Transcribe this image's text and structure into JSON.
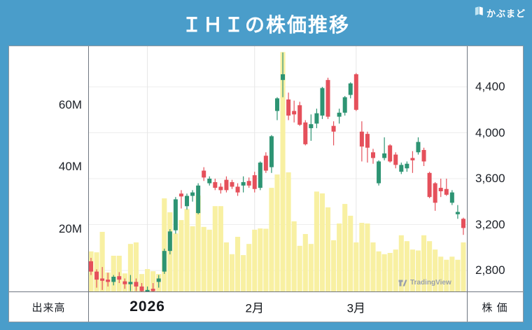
{
  "header": {
    "title": "ＩＨＩの株価推移",
    "logo_text": "かぶまど"
  },
  "colors": {
    "page_bg": "#4A9DCA",
    "panel_bg": "#FFFFFF",
    "up": "#2D9473",
    "down": "#E5505B",
    "volume": "#F8F0A2",
    "grid": "#EDEDED",
    "month_grid": "#E6E6E6",
    "border": "#6F7680",
    "axis_text": "#1C2027",
    "watermark": "#9AA0A9"
  },
  "axes": {
    "volume_axis_label": "出来高",
    "price_axis_label": "株 価",
    "volume_ticks": [
      {
        "label": "60M",
        "value": 60
      },
      {
        "label": "40M",
        "value": 40
      },
      {
        "label": "20M",
        "value": 20
      }
    ],
    "price_ticks": [
      {
        "label": "4,400",
        "value": 4400
      },
      {
        "label": "4,000",
        "value": 4000
      },
      {
        "label": "3,600",
        "value": 3600
      },
      {
        "label": "3,200",
        "value": 3200
      },
      {
        "label": "2,800",
        "value": 2800
      }
    ],
    "x_ticks": [
      {
        "label": "2026",
        "index": 10,
        "bold": true
      },
      {
        "label": "2月",
        "index": 29,
        "bold": false
      },
      {
        "label": "3月",
        "index": 47,
        "bold": false
      }
    ]
  },
  "watermark_text": "TradingView",
  "chart_data": {
    "type": "candlestick+volume",
    "title": "ＩＨＩの株価推移",
    "price_axis": {
      "visible_range": [
        2610,
        4755
      ],
      "tick_step": 400,
      "unit": "JPY"
    },
    "volume_axis": {
      "visible_range": [
        0,
        79
      ],
      "tick_step": 20,
      "unit": "M shares"
    },
    "x_axis": {
      "period_labels": [
        "2026",
        "2月",
        "3月"
      ],
      "granularity": "daily"
    },
    "candle_columns": [
      "open",
      "high",
      "low",
      "close",
      "volume_m"
    ],
    "candles": [
      [
        2880,
        2910,
        2760,
        2790,
        12.7
      ],
      [
        2790,
        2810,
        2650,
        2720,
        12.4
      ],
      [
        2730,
        2830,
        2630,
        2710,
        19.0
      ],
      [
        2720,
        2780,
        2660,
        2700,
        5.9
      ],
      [
        2700,
        2760,
        2670,
        2745,
        11.3
      ],
      [
        2750,
        2785,
        2690,
        2720,
        11.3
      ],
      [
        2705,
        2730,
        2640,
        2680,
        5.6
      ],
      [
        2680,
        2760,
        2620,
        2700,
        15.1
      ],
      [
        2700,
        2730,
        2620,
        2660,
        15.6
      ],
      [
        2660,
        2690,
        2570,
        2620,
        5.4
      ],
      [
        2600,
        2660,
        2550,
        2630,
        7.0
      ],
      [
        2640,
        2690,
        2590,
        2620,
        6.3
      ],
      [
        2700,
        2760,
        2650,
        2730,
        5.4
      ],
      [
        2790,
        2990,
        2770,
        2970,
        29.8
      ],
      [
        2970,
        3160,
        2940,
        3140,
        25.3
      ],
      [
        3150,
        3440,
        3120,
        3420,
        18.5
      ],
      [
        3470,
        3500,
        3340,
        3445,
        22.8
      ],
      [
        3360,
        3470,
        3330,
        3450,
        26.4
      ],
      [
        3450,
        3500,
        3400,
        3480,
        20.8
      ],
      [
        3300,
        3560,
        3290,
        3540,
        30.7
      ],
      [
        3670,
        3700,
        3580,
        3610,
        20.6
      ],
      [
        3560,
        3620,
        3540,
        3600,
        19.7
      ],
      [
        3570,
        3600,
        3500,
        3520,
        27.3
      ],
      [
        3530,
        3560,
        3470,
        3500,
        27.3
      ],
      [
        3590,
        3620,
        3480,
        3500,
        15.6
      ],
      [
        3570,
        3590,
        3510,
        3530,
        11.8
      ],
      [
        3530,
        3560,
        3450,
        3480,
        17.4
      ],
      [
        3540,
        3620,
        3480,
        3570,
        11.5
      ],
      [
        3580,
        3610,
        3520,
        3540,
        15.1
      ],
      [
        3630,
        3660,
        3480,
        3510,
        19.7
      ],
      [
        3520,
        3750,
        3500,
        3740,
        20.1
      ],
      [
        3800,
        3830,
        3650,
        3670,
        20.0
      ],
      [
        3700,
        3980,
        3650,
        3970,
        33.2
      ],
      [
        4190,
        4310,
        4110,
        4300,
        37.5
      ],
      [
        4460,
        4700,
        4310,
        4510,
        77.0
      ],
      [
        4290,
        4350,
        4110,
        4150,
        38.2
      ],
      [
        4190,
        4280,
        4090,
        4160,
        22.4
      ],
      [
        4240,
        4270,
        4060,
        4070,
        14.5
      ],
      [
        4090,
        4110,
        3890,
        3900,
        18.3
      ],
      [
        4040,
        4160,
        3930,
        4075,
        15.1
      ],
      [
        4080,
        4210,
        4040,
        4170,
        32.0
      ],
      [
        4150,
        4400,
        4120,
        4390,
        31.4
      ],
      [
        4460,
        4480,
        4120,
        4140,
        26.9
      ],
      [
        4060,
        4100,
        3890,
        4010,
        16.3
      ],
      [
        4140,
        4210,
        4080,
        4175,
        21.7
      ],
      [
        4175,
        4320,
        4150,
        4310,
        28.0
      ],
      [
        4330,
        4440,
        4300,
        4430,
        24.2
      ],
      [
        4510,
        4520,
        4190,
        4200,
        15.6
      ],
      [
        4010,
        4100,
        3750,
        3880,
        21.9
      ],
      [
        3990,
        4010,
        3740,
        3870,
        21.7
      ],
      [
        3830,
        3860,
        3730,
        3780,
        15.6
      ],
      [
        3560,
        3760,
        3540,
        3750,
        12.7
      ],
      [
        3780,
        3960,
        3760,
        3820,
        11.8
      ],
      [
        3890,
        3900,
        3740,
        3750,
        12.2
      ],
      [
        3810,
        3830,
        3690,
        3720,
        13.3
      ],
      [
        3660,
        3740,
        3640,
        3720,
        17.9
      ],
      [
        3690,
        3750,
        3660,
        3730,
        16.0
      ],
      [
        3780,
        3840,
        3650,
        3760,
        13.3
      ],
      [
        3830,
        3960,
        3810,
        3920,
        13.0
      ],
      [
        3850,
        3870,
        3710,
        3750,
        17.9
      ],
      [
        3650,
        3660,
        3430,
        3440,
        16.0
      ],
      [
        3560,
        3570,
        3320,
        3390,
        13.3
      ],
      [
        3520,
        3600,
        3440,
        3490,
        11.0
      ],
      [
        3510,
        3600,
        3450,
        3460,
        10.0
      ],
      [
        3390,
        3500,
        3370,
        3480,
        11.0
      ],
      [
        3290,
        3370,
        3250,
        3310,
        10.0
      ],
      [
        3250,
        3260,
        3110,
        3170,
        15.6
      ]
    ]
  }
}
